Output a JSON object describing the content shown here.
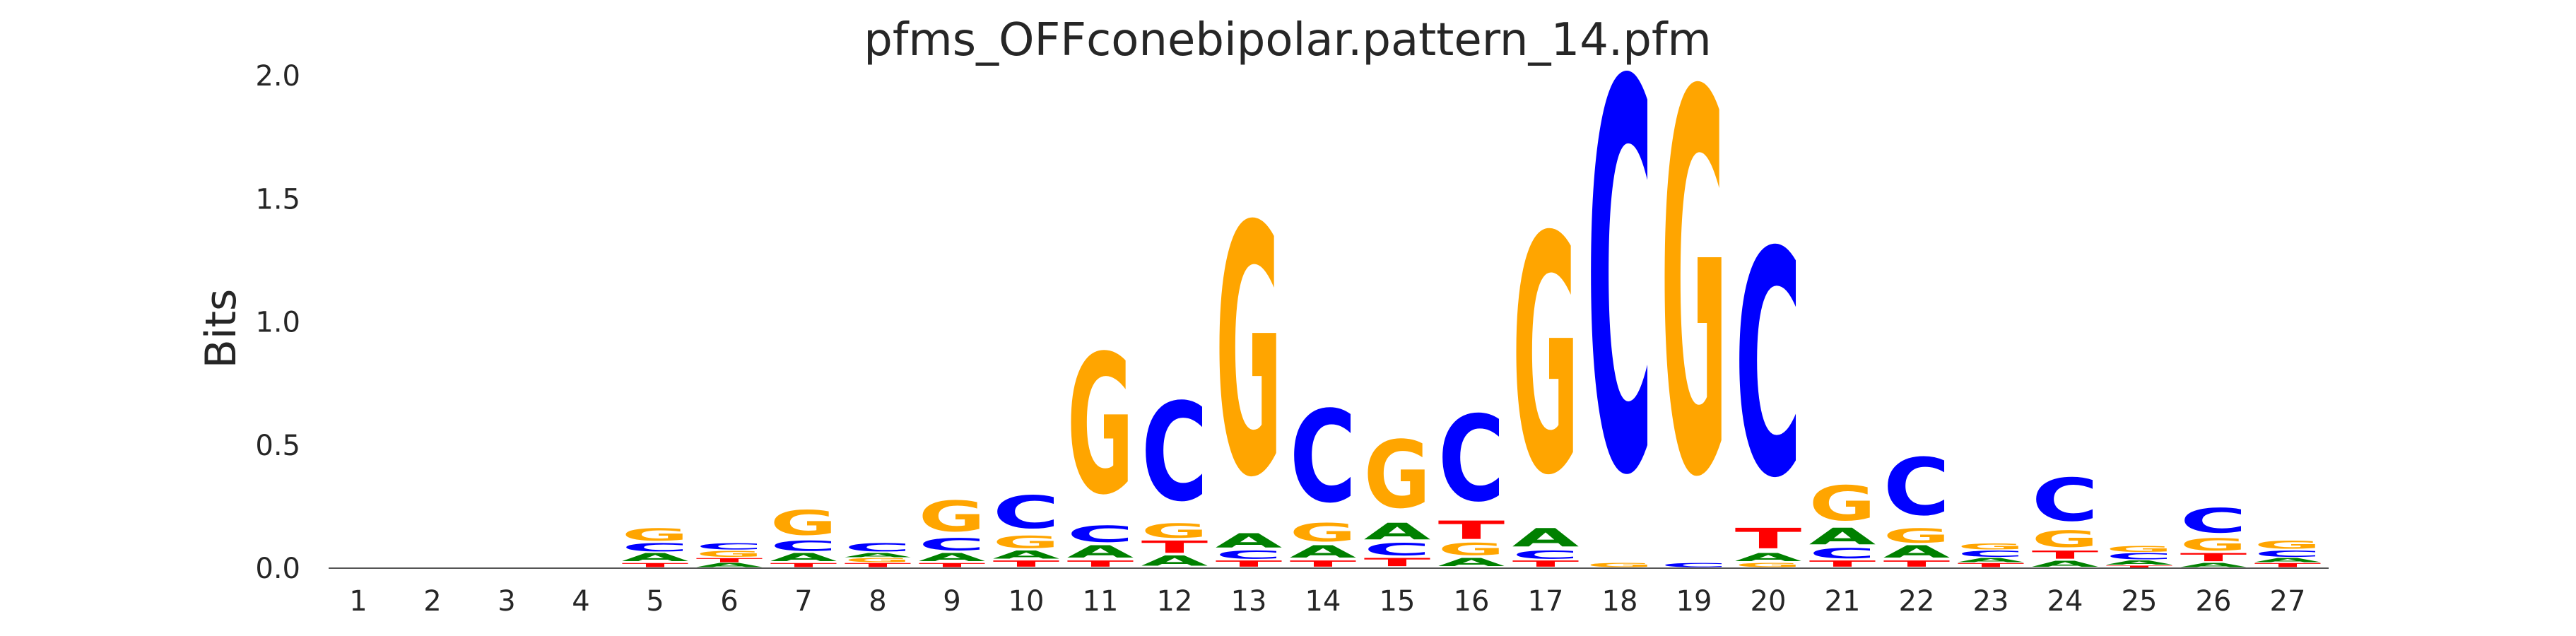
{
  "chart_data": {
    "type": "sequence-logo",
    "title": "pfms_OFFconebipolar.pattern_14.pfm",
    "xlabel": "",
    "ylabel": "Bits",
    "ylim": [
      0,
      2.0
    ],
    "yticks": [
      "0.0",
      "0.5",
      "1.0",
      "1.5",
      "2.0"
    ],
    "xticks": [
      "1",
      "2",
      "3",
      "4",
      "5",
      "6",
      "7",
      "8",
      "9",
      "10",
      "11",
      "12",
      "13",
      "14",
      "15",
      "16",
      "17",
      "18",
      "19",
      "20",
      "21",
      "22",
      "23",
      "24",
      "25",
      "26",
      "27"
    ],
    "colors": {
      "A": "#008000",
      "C": "#0000ff",
      "G": "#ffa500",
      "T": "#ff0000"
    },
    "positions": [
      {
        "pos": 1,
        "letters": []
      },
      {
        "pos": 2,
        "letters": []
      },
      {
        "pos": 3,
        "letters": []
      },
      {
        "pos": 4,
        "letters": []
      },
      {
        "pos": 5,
        "letters": [
          {
            "base": "T",
            "bits": 0.02
          },
          {
            "base": "A",
            "bits": 0.04
          },
          {
            "base": "C",
            "bits": 0.04
          },
          {
            "base": "G",
            "bits": 0.06
          }
        ]
      },
      {
        "pos": 6,
        "letters": [
          {
            "base": "A",
            "bits": 0.02
          },
          {
            "base": "T",
            "bits": 0.02
          },
          {
            "base": "G",
            "bits": 0.03
          },
          {
            "base": "C",
            "bits": 0.03
          }
        ]
      },
      {
        "pos": 7,
        "letters": [
          {
            "base": "T",
            "bits": 0.02
          },
          {
            "base": "A",
            "bits": 0.04
          },
          {
            "base": "C",
            "bits": 0.05
          },
          {
            "base": "G",
            "bits": 0.12
          }
        ]
      },
      {
        "pos": 8,
        "letters": [
          {
            "base": "T",
            "bits": 0.02
          },
          {
            "base": "G",
            "bits": 0.02
          },
          {
            "base": "A",
            "bits": 0.02
          },
          {
            "base": "C",
            "bits": 0.04
          }
        ]
      },
      {
        "pos": 9,
        "letters": [
          {
            "base": "T",
            "bits": 0.02
          },
          {
            "base": "A",
            "bits": 0.04
          },
          {
            "base": "C",
            "bits": 0.06
          },
          {
            "base": "G",
            "bits": 0.15
          }
        ]
      },
      {
        "pos": 10,
        "letters": [
          {
            "base": "T",
            "bits": 0.03
          },
          {
            "base": "A",
            "bits": 0.04
          },
          {
            "base": "G",
            "bits": 0.06
          },
          {
            "base": "C",
            "bits": 0.16
          }
        ]
      },
      {
        "pos": 11,
        "letters": [
          {
            "base": "T",
            "bits": 0.03
          },
          {
            "base": "A",
            "bits": 0.06
          },
          {
            "base": "C",
            "bits": 0.08
          },
          {
            "base": "G",
            "bits": 0.68
          }
        ]
      },
      {
        "pos": 12,
        "letters": [
          {
            "base": "A",
            "bits": 0.05
          },
          {
            "base": "T",
            "bits": 0.06
          },
          {
            "base": "G",
            "bits": 0.07
          },
          {
            "base": "C",
            "bits": 0.48
          }
        ]
      },
      {
        "pos": 13,
        "letters": [
          {
            "base": "T",
            "bits": 0.03
          },
          {
            "base": "C",
            "bits": 0.04
          },
          {
            "base": "A",
            "bits": 0.07
          },
          {
            "base": "G",
            "bits": 1.22
          }
        ]
      },
      {
        "pos": 14,
        "letters": [
          {
            "base": "T",
            "bits": 0.03
          },
          {
            "base": "A",
            "bits": 0.06
          },
          {
            "base": "G",
            "bits": 0.09
          },
          {
            "base": "C",
            "bits": 0.45
          }
        ]
      },
      {
        "pos": 15,
        "letters": [
          {
            "base": "T",
            "bits": 0.04
          },
          {
            "base": "C",
            "bits": 0.06
          },
          {
            "base": "A",
            "bits": 0.08
          },
          {
            "base": "G",
            "bits": 0.33
          }
        ]
      },
      {
        "pos": 16,
        "letters": [
          {
            "base": "A",
            "bits": 0.04
          },
          {
            "base": "G",
            "bits": 0.06
          },
          {
            "base": "T",
            "bits": 0.09
          },
          {
            "base": "C",
            "bits": 0.42
          }
        ]
      },
      {
        "pos": 17,
        "letters": [
          {
            "base": "T",
            "bits": 0.03
          },
          {
            "base": "C",
            "bits": 0.04
          },
          {
            "base": "A",
            "bits": 0.09
          },
          {
            "base": "G",
            "bits": 1.16
          }
        ]
      },
      {
        "pos": 18,
        "letters": [
          {
            "base": "G",
            "bits": 0.02
          },
          {
            "base": "C",
            "bits": 1.9
          }
        ]
      },
      {
        "pos": 19,
        "letters": [
          {
            "base": "C",
            "bits": 0.02
          },
          {
            "base": "G",
            "bits": 1.86
          }
        ]
      },
      {
        "pos": 20,
        "letters": [
          {
            "base": "G",
            "bits": 0.02
          },
          {
            "base": "A",
            "bits": 0.04
          },
          {
            "base": "T",
            "bits": 0.1
          },
          {
            "base": "C",
            "bits": 1.1
          }
        ]
      },
      {
        "pos": 21,
        "letters": [
          {
            "base": "T",
            "bits": 0.03
          },
          {
            "base": "C",
            "bits": 0.05
          },
          {
            "base": "A",
            "bits": 0.08
          },
          {
            "base": "G",
            "bits": 0.17
          }
        ]
      },
      {
        "pos": 22,
        "letters": [
          {
            "base": "T",
            "bits": 0.03
          },
          {
            "base": "A",
            "bits": 0.06
          },
          {
            "base": "G",
            "bits": 0.07
          },
          {
            "base": "C",
            "bits": 0.28
          }
        ]
      },
      {
        "pos": 23,
        "letters": [
          {
            "base": "T",
            "bits": 0.02
          },
          {
            "base": "A",
            "bits": 0.02
          },
          {
            "base": "C",
            "bits": 0.03
          },
          {
            "base": "G",
            "bits": 0.03
          }
        ]
      },
      {
        "pos": 24,
        "letters": [
          {
            "base": "A",
            "bits": 0.03
          },
          {
            "base": "T",
            "bits": 0.04
          },
          {
            "base": "G",
            "bits": 0.08
          },
          {
            "base": "C",
            "bits": 0.21
          }
        ]
      },
      {
        "pos": 25,
        "letters": [
          {
            "base": "T",
            "bits": 0.01
          },
          {
            "base": "A",
            "bits": 0.02
          },
          {
            "base": "C",
            "bits": 0.03
          },
          {
            "base": "G",
            "bits": 0.03
          }
        ]
      },
      {
        "pos": 26,
        "letters": [
          {
            "base": "A",
            "bits": 0.02
          },
          {
            "base": "T",
            "bits": 0.04
          },
          {
            "base": "G",
            "bits": 0.06
          },
          {
            "base": "C",
            "bits": 0.12
          }
        ]
      },
      {
        "pos": 27,
        "letters": [
          {
            "base": "T",
            "bits": 0.02
          },
          {
            "base": "A",
            "bits": 0.02
          },
          {
            "base": "C",
            "bits": 0.03
          },
          {
            "base": "G",
            "bits": 0.04
          }
        ]
      }
    ]
  }
}
